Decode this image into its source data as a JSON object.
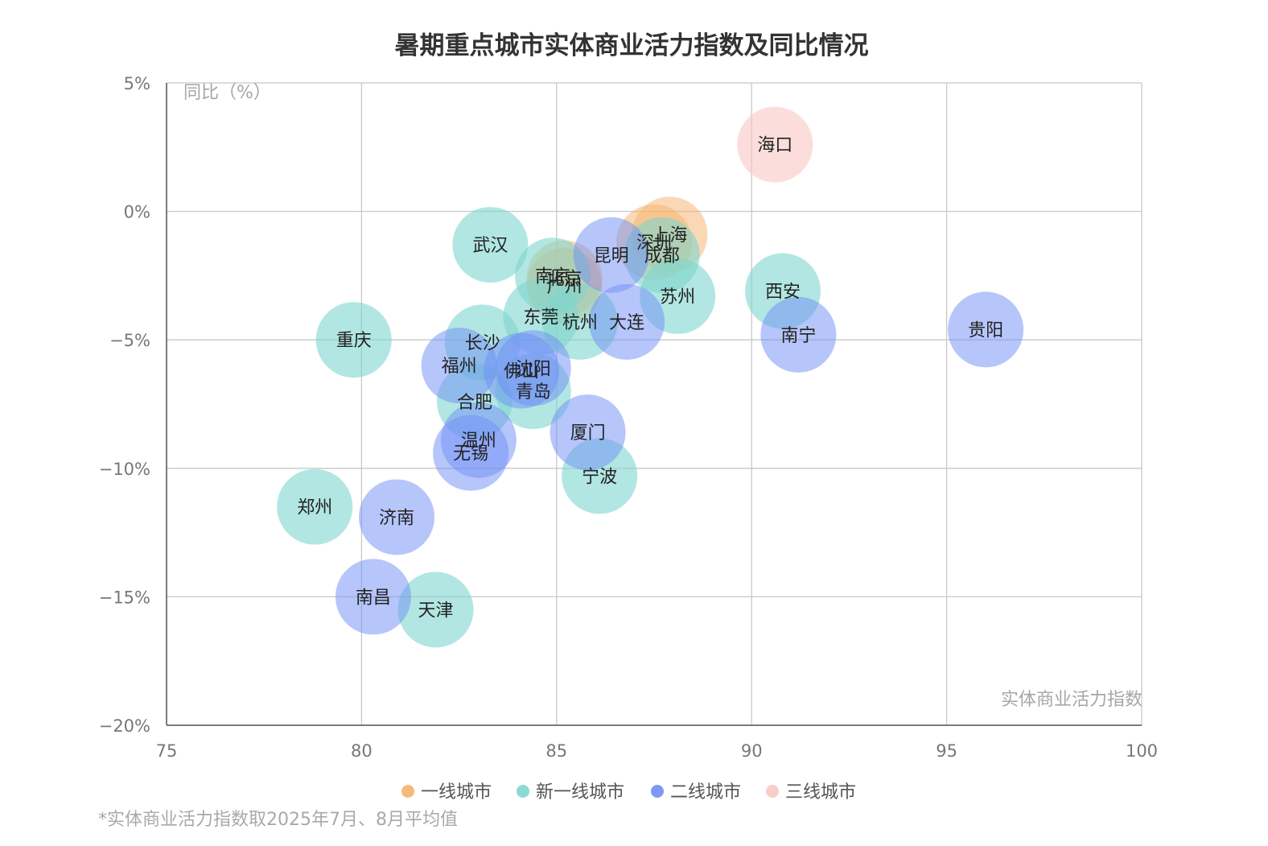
{
  "chart_data": {
    "type": "scatter",
    "title": "暑期重点城市实体商业活力指数及同比情况",
    "xlabel": "实体商业活力指数",
    "ylabel": "同比（%）",
    "xlim": [
      75,
      100
    ],
    "ylim": [
      -20,
      5
    ],
    "xticks": [
      75,
      80,
      85,
      90,
      95,
      100
    ],
    "xtick_labels": [
      "75",
      "80",
      "85",
      "90",
      "95",
      "100"
    ],
    "yticks": [
      5,
      0,
      -5,
      -10,
      -15,
      -20
    ],
    "ytick_labels": [
      "5%",
      "0%",
      "−5%",
      "−10%",
      "−15%",
      "−20%"
    ],
    "grid": true,
    "legend_position": "bottom",
    "series": [
      {
        "name": "一线城市",
        "color": "#F5B26B",
        "opacity": 0.5,
        "points": [
          {
            "city": "上海",
            "x": 87.9,
            "y": -0.9
          },
          {
            "city": "深圳",
            "x": 87.5,
            "y": -1.2
          },
          {
            "city": "北京",
            "x": 85.2,
            "y": -2.6
          },
          {
            "city": "广州",
            "x": 85.2,
            "y": -2.9
          }
        ]
      },
      {
        "name": "新一线城市",
        "color": "#7FD6CF",
        "opacity": 0.6,
        "points": [
          {
            "city": "成都",
            "x": 87.7,
            "y": -1.7
          },
          {
            "city": "苏州",
            "x": 88.1,
            "y": -3.3
          },
          {
            "city": "武汉",
            "x": 83.3,
            "y": -1.3
          },
          {
            "city": "南京",
            "x": 84.9,
            "y": -2.5
          },
          {
            "city": "东莞",
            "x": 84.6,
            "y": -4.1
          },
          {
            "city": "杭州",
            "x": 85.6,
            "y": -4.3
          },
          {
            "city": "西安",
            "x": 90.8,
            "y": -3.1
          },
          {
            "city": "重庆",
            "x": 79.8,
            "y": -5.0
          },
          {
            "city": "长沙",
            "x": 83.1,
            "y": -5.1
          },
          {
            "city": "合肥",
            "x": 82.9,
            "y": -7.4
          },
          {
            "city": "青岛",
            "x": 84.4,
            "y": -7.0
          },
          {
            "city": "宁波",
            "x": 86.1,
            "y": -10.3
          },
          {
            "city": "郑州",
            "x": 78.8,
            "y": -11.5
          },
          {
            "city": "天津",
            "x": 81.9,
            "y": -15.5
          }
        ]
      },
      {
        "name": "二线城市",
        "color": "#6E8EF5",
        "opacity": 0.5,
        "points": [
          {
            "city": "昆明",
            "x": 86.4,
            "y": -1.7
          },
          {
            "city": "大连",
            "x": 86.8,
            "y": -4.3
          },
          {
            "city": "南宁",
            "x": 91.2,
            "y": -4.8
          },
          {
            "city": "贵阳",
            "x": 96.0,
            "y": -4.6
          },
          {
            "city": "福州",
            "x": 82.5,
            "y": -6.0
          },
          {
            "city": "佛山",
            "x": 84.1,
            "y": -6.2
          },
          {
            "city": "沈阳",
            "x": 84.4,
            "y": -6.1
          },
          {
            "city": "厦门",
            "x": 85.8,
            "y": -8.6
          },
          {
            "city": "温州",
            "x": 83.0,
            "y": -8.9
          },
          {
            "city": "无锡",
            "x": 82.8,
            "y": -9.4
          },
          {
            "city": "济南",
            "x": 80.9,
            "y": -11.9
          },
          {
            "city": "南昌",
            "x": 80.3,
            "y": -15.0
          }
        ]
      },
      {
        "name": "三线城市",
        "color": "#F8C8C3",
        "opacity": 0.6,
        "points": [
          {
            "city": "海口",
            "x": 90.6,
            "y": 2.6
          }
        ]
      }
    ]
  },
  "footnote": "*实体商业活力指数取2025年7月、8月平均值"
}
